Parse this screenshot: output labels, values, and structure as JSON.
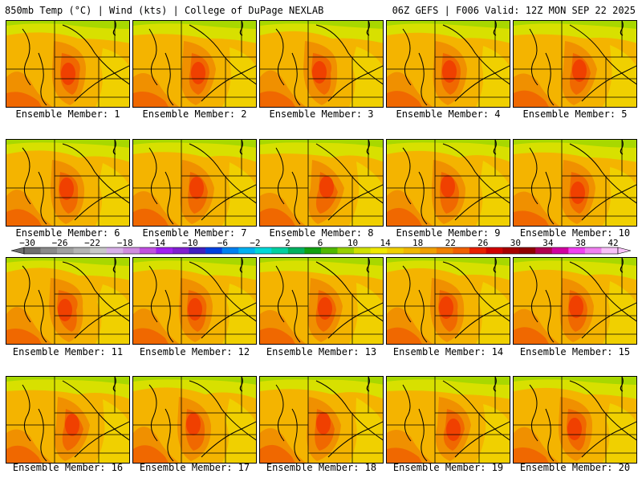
{
  "header": {
    "left": "850mb Temp (°C) | Wind (kts) | College of DuPage NEXLAB",
    "right": "06Z GEFS | F006 Valid: 12Z MON SEP 22 2025"
  },
  "caption_prefix": "Ensemble Member:",
  "members": [
    "Ensemble Member: 1",
    "Ensemble Member: 2",
    "Ensemble Member: 3",
    "Ensemble Member: 4",
    "Ensemble Member: 5",
    "Ensemble Member: 6",
    "Ensemble Member: 7",
    "Ensemble Member: 8",
    "Ensemble Member: 9",
    "Ensemble Member: 10",
    "Ensemble Member: 11",
    "Ensemble Member: 12",
    "Ensemble Member: 13",
    "Ensemble Member: 14",
    "Ensemble Member: 15",
    "Ensemble Member: 16",
    "Ensemble Member: 17",
    "Ensemble Member: 18",
    "Ensemble Member: 19",
    "Ensemble Member: 20"
  ],
  "colorbar": {
    "unit": "°C",
    "labels": [
      "−30",
      "−26",
      "−22",
      "−18",
      "−14",
      "−10",
      "−6",
      "−2",
      "2",
      "6",
      "10",
      "14",
      "18",
      "22",
      "26",
      "30",
      "34",
      "38",
      "42"
    ],
    "colors": [
      "#6e6e6e",
      "#8a8a8a",
      "#a0a0a0",
      "#b4b4b4",
      "#c8c8c8",
      "#d8b0e8",
      "#d08ce0",
      "#c050e0",
      "#a020f0",
      "#8020d0",
      "#4020c0",
      "#0040e0",
      "#0080f0",
      "#00b0f0",
      "#00d8d8",
      "#00d0a0",
      "#00b060",
      "#10a010",
      "#50b800",
      "#98d000",
      "#d0e000",
      "#f0e800",
      "#f0d000",
      "#f0b800",
      "#f0a000",
      "#f08000",
      "#f06000",
      "#e82000",
      "#d00000",
      "#a80000",
      "#900000",
      "#b00050",
      "#d000a0",
      "#f040f0",
      "#f080f0",
      "#f8c0f8"
    ]
  },
  "palette": {
    "edge_green": "#a8d800",
    "yellow_green": "#d8e000",
    "yellow": "#f0d000",
    "light_orange": "#f4b400",
    "orange": "#f09000",
    "dark_orange": "#f06800",
    "red_orange": "#f04000"
  }
}
